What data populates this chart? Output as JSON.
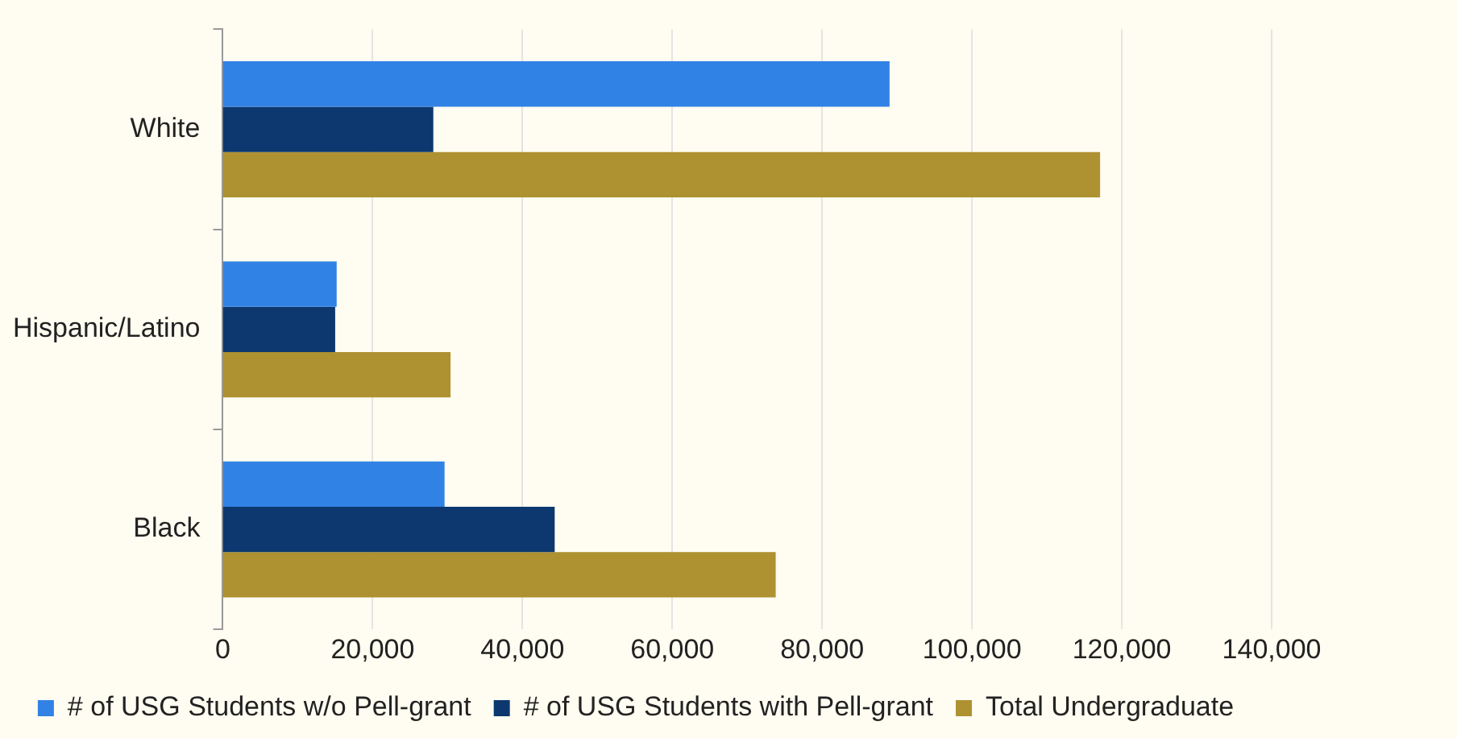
{
  "chart_data": {
    "type": "bar",
    "orientation": "horizontal",
    "categories": [
      "White",
      "Hispanic/Latino",
      "Black"
    ],
    "series": [
      {
        "name": "# of USG Students w/o Pell-grant",
        "color": "#3182e5",
        "values": [
          89000,
          15200,
          29600
        ]
      },
      {
        "name": "# of USG Students with Pell-grant",
        "color": "#0c386f",
        "values": [
          28100,
          15000,
          44300
        ]
      },
      {
        "name": "Total Undergraduate",
        "color": "#ae9131",
        "values": [
          117100,
          30400,
          73800
        ]
      }
    ],
    "xlim": [
      0,
      140000
    ],
    "xticks": [
      0,
      {
        "value": 20000,
        "label": "20,000"
      },
      {
        "value": 40000,
        "label": "40,000"
      },
      {
        "value": 60000,
        "label": "60,000"
      },
      {
        "value": 80000,
        "label": "80,000"
      },
      {
        "value": 100000,
        "label": "100,000"
      },
      {
        "value": 120000,
        "label": "120,000"
      },
      {
        "value": 140000,
        "label": "140,000"
      }
    ],
    "grid": "x",
    "legend": "bottom"
  }
}
